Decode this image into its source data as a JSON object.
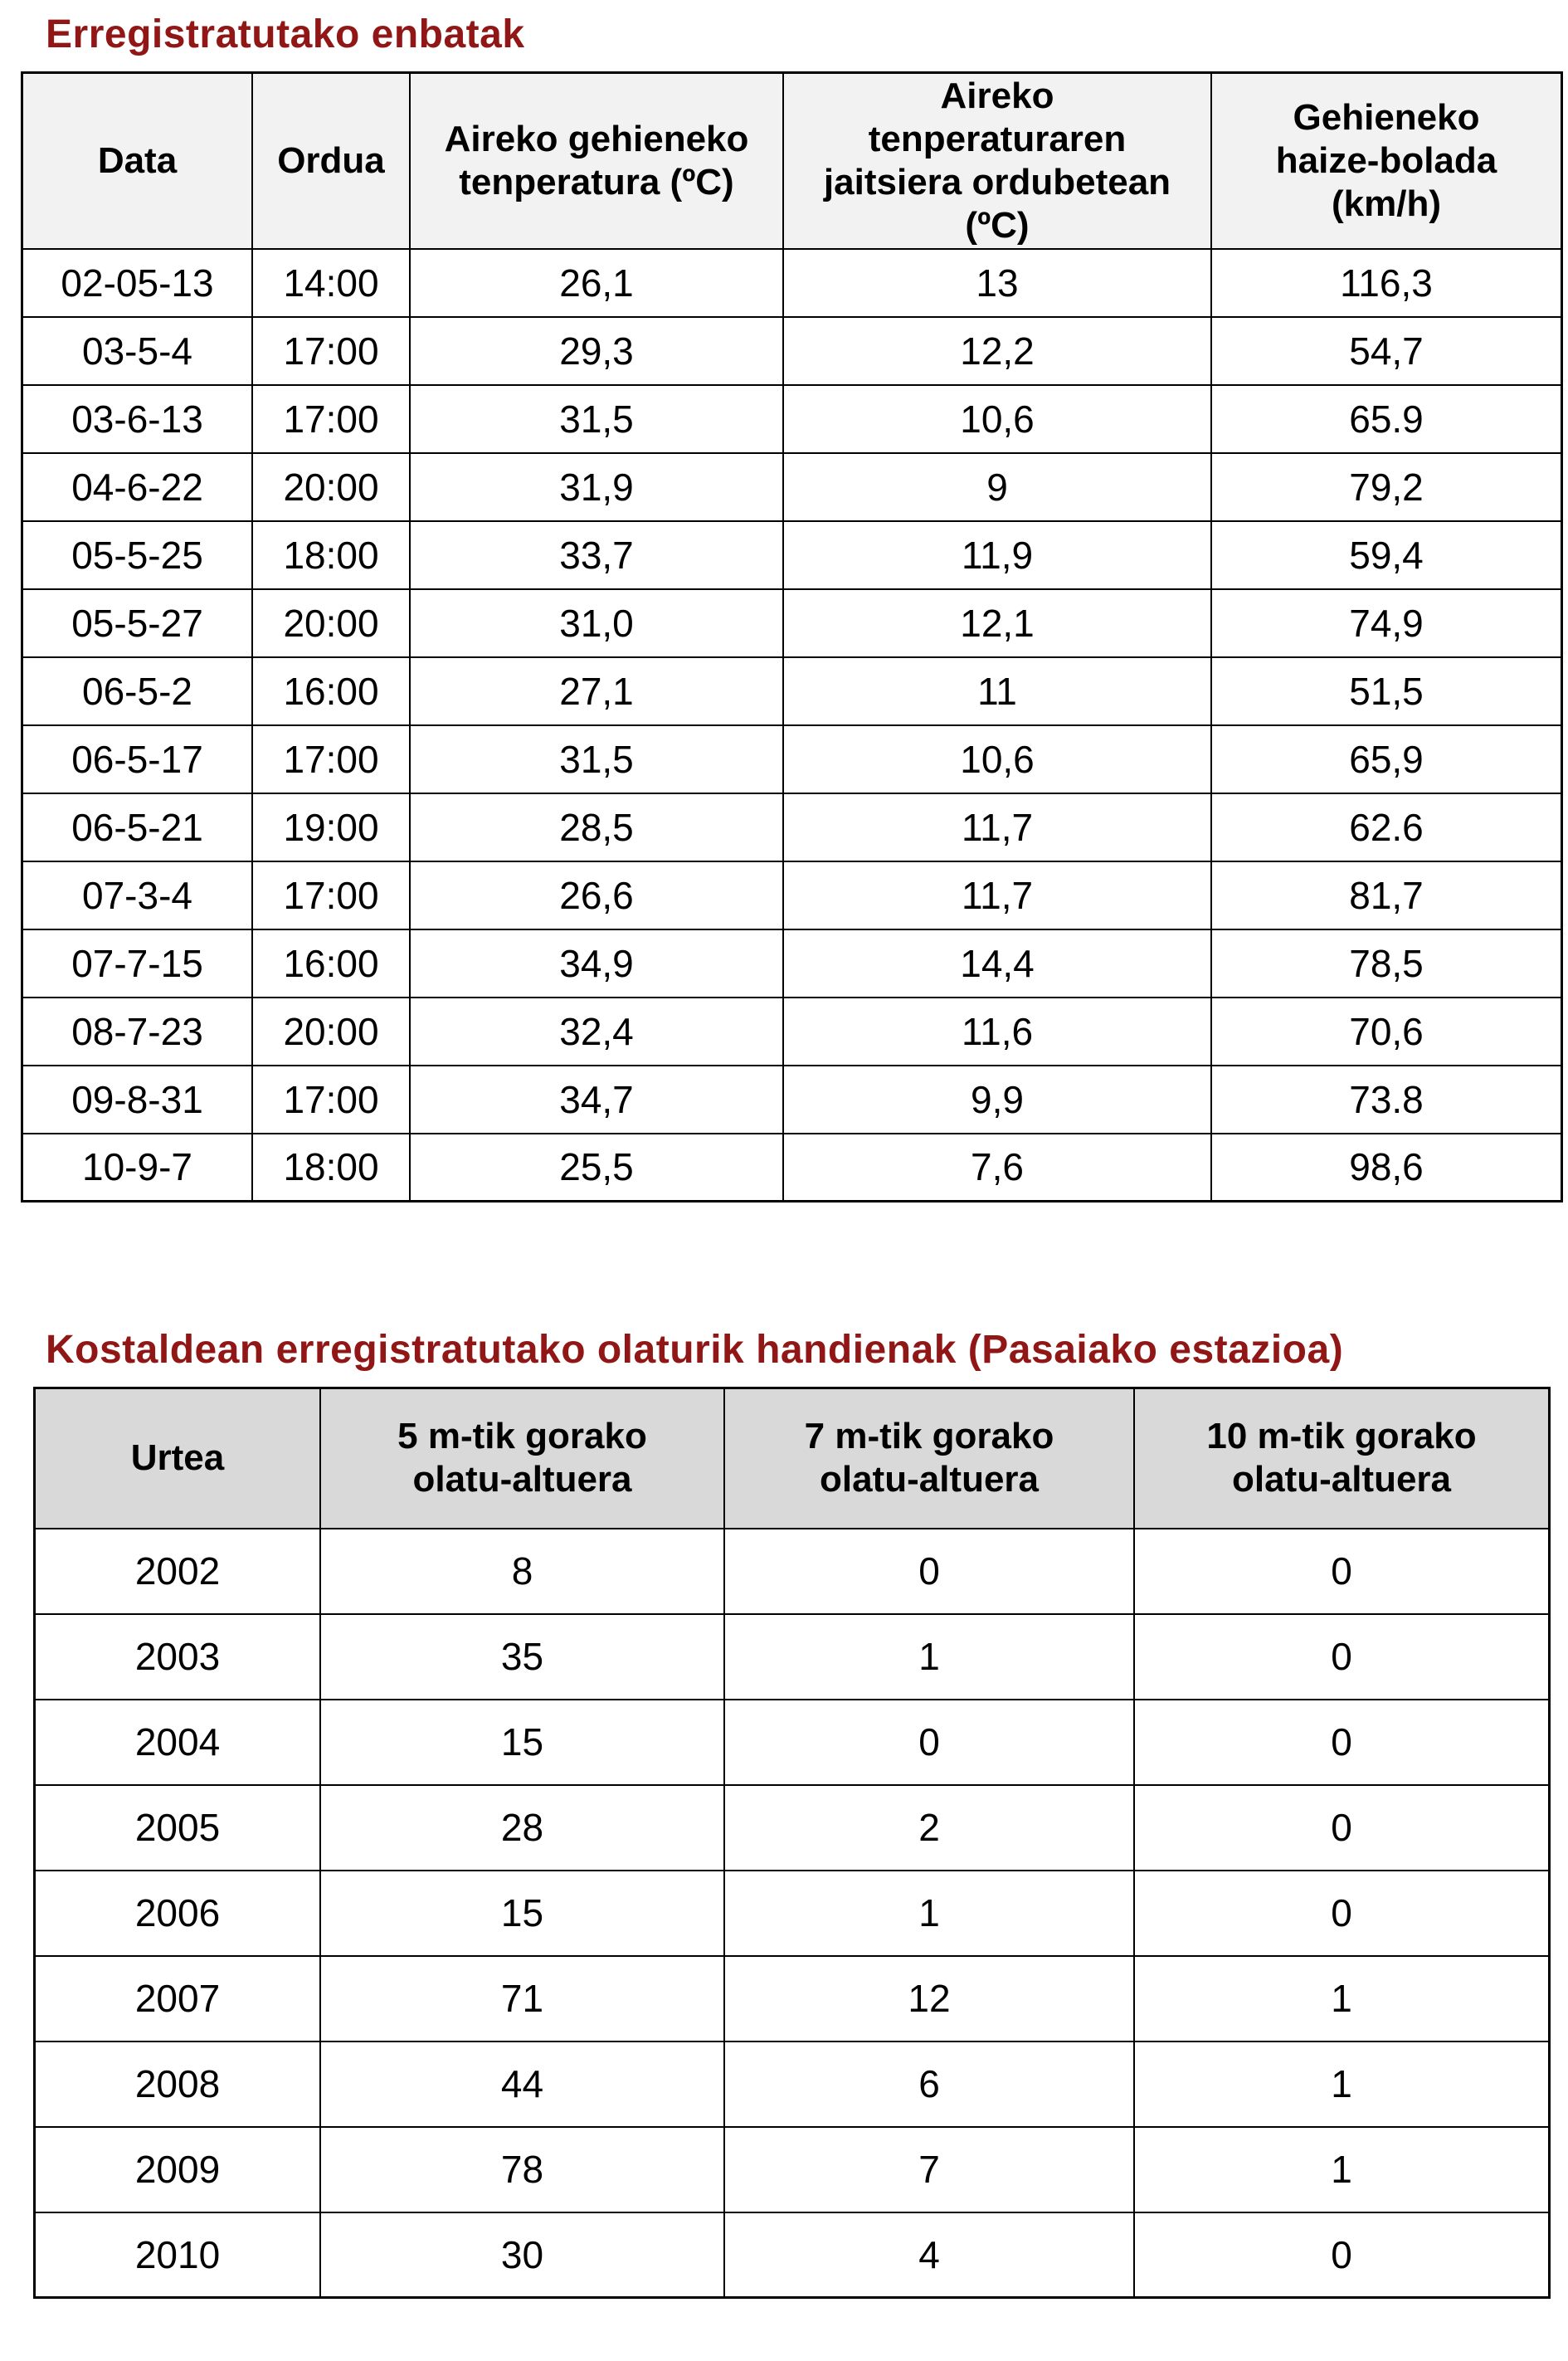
{
  "colors": {
    "title_text": "#911717",
    "table1_header_bg": "#f2f2f2",
    "table2_header_bg": "#d9d9d9",
    "border": "#000000",
    "body_text": "#000000",
    "page_bg": "#ffffff"
  },
  "table1": {
    "title": "Erregistratutako enbatak",
    "columns": [
      "Data",
      "Ordua",
      "Aireko gehieneko\ntenperatura (ºC)",
      "Aireko\ntenperaturaren\njaitsiera ordubetean\n(ºC)",
      "Gehieneko\nhaize-bolada\n(km/h)"
    ],
    "rows": [
      [
        "02-05-13",
        "14:00",
        "26,1",
        "13",
        "116,3"
      ],
      [
        "03-5-4",
        "17:00",
        "29,3",
        "12,2",
        "54,7"
      ],
      [
        "03-6-13",
        "17:00",
        "31,5",
        "10,6",
        "65.9"
      ],
      [
        "04-6-22",
        "20:00",
        "31,9",
        "9",
        "79,2"
      ],
      [
        "05-5-25",
        "18:00",
        "33,7",
        "11,9",
        "59,4"
      ],
      [
        "05-5-27",
        "20:00",
        "31,0",
        "12,1",
        "74,9"
      ],
      [
        "06-5-2",
        "16:00",
        "27,1",
        "11",
        "51,5"
      ],
      [
        "06-5-17",
        "17:00",
        "31,5",
        "10,6",
        "65,9"
      ],
      [
        "06-5-21",
        "19:00",
        "28,5",
        "11,7",
        "62.6"
      ],
      [
        "07-3-4",
        "17:00",
        "26,6",
        "11,7",
        "81,7"
      ],
      [
        "07-7-15",
        "16:00",
        "34,9",
        "14,4",
        "78,5"
      ],
      [
        "08-7-23",
        "20:00",
        "32,4",
        "11,6",
        "70,6"
      ],
      [
        "09-8-31",
        "17:00",
        "34,7",
        "9,9",
        "73.8"
      ],
      [
        "10-9-7",
        "18:00",
        "25,5",
        "7,6",
        "98,6"
      ]
    ]
  },
  "table2": {
    "title": "Kostaldean erregistratutako olaturik handienak (Pasaiako estazioa)",
    "columns": [
      "Urtea",
      "5 m-tik gorako\nolatu-altuera",
      "7 m-tik gorako\nolatu-altuera",
      "10 m-tik gorako\nolatu-altuera"
    ],
    "rows": [
      [
        "2002",
        "8",
        "0",
        "0"
      ],
      [
        "2003",
        "35",
        "1",
        "0"
      ],
      [
        "2004",
        "15",
        "0",
        "0"
      ],
      [
        "2005",
        "28",
        "2",
        "0"
      ],
      [
        "2006",
        "15",
        "1",
        "0"
      ],
      [
        "2007",
        "71",
        "12",
        "1"
      ],
      [
        "2008",
        "44",
        "6",
        "1"
      ],
      [
        "2009",
        "78",
        "7",
        "1"
      ],
      [
        "2010",
        "30",
        "4",
        "0"
      ]
    ]
  }
}
